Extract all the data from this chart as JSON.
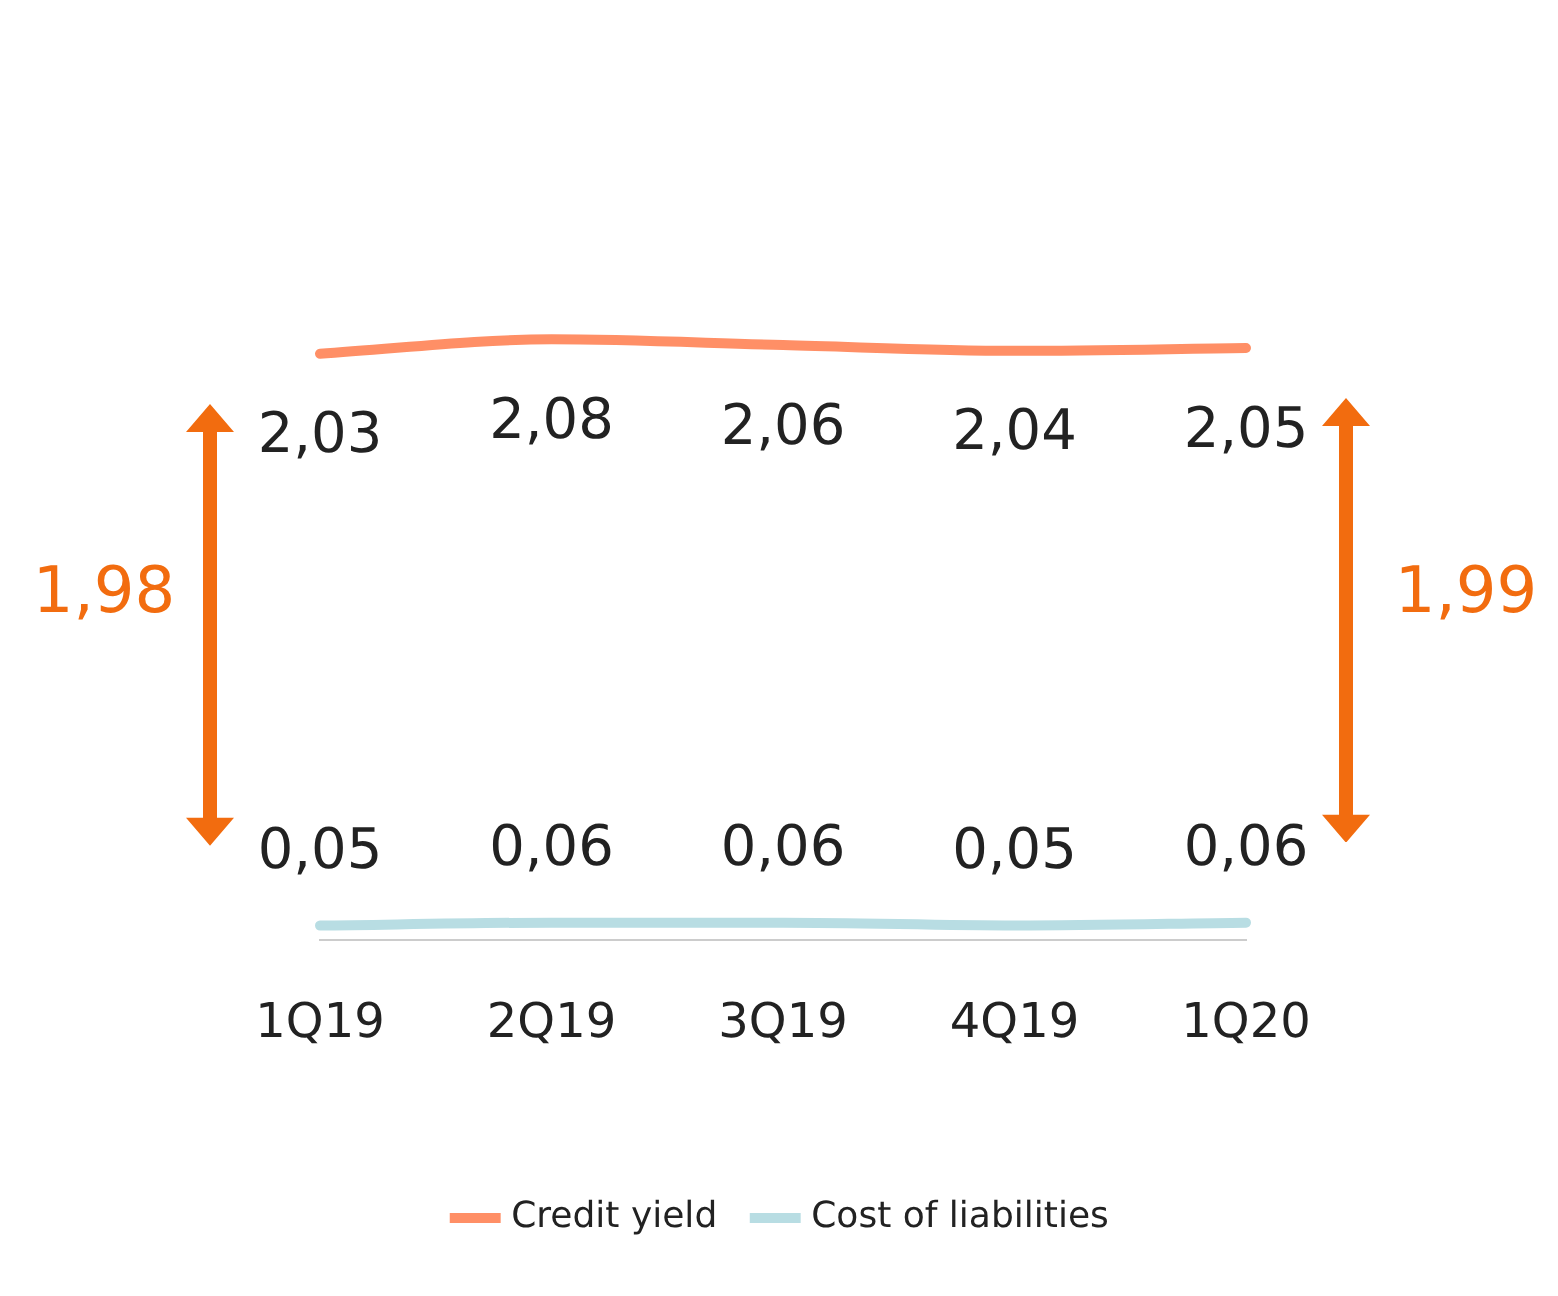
{
  "chart_data": {
    "type": "line",
    "categories": [
      "1Q19",
      "2Q19",
      "3Q19",
      "4Q19",
      "1Q20"
    ],
    "series": [
      {
        "name": "Credit yield",
        "color": "#ff8f66",
        "values": [
          2.03,
          2.08,
          2.06,
          2.04,
          2.05
        ],
        "value_labels": [
          "2,03",
          "2,08",
          "2,06",
          "2,04",
          "2,05"
        ]
      },
      {
        "name": "Cost of liabilities",
        "color": "#b8dde3",
        "values": [
          0.05,
          0.06,
          0.06,
          0.05,
          0.06
        ],
        "value_labels": [
          "0,05",
          "0,06",
          "0,06",
          "0,05",
          "0,06"
        ]
      }
    ],
    "tick_labels": "x",
    "grid": false,
    "legend": "bottom",
    "marker": "none",
    "line_style": "solid",
    "annotations": [
      "1,98",
      "1,99"
    ]
  }
}
